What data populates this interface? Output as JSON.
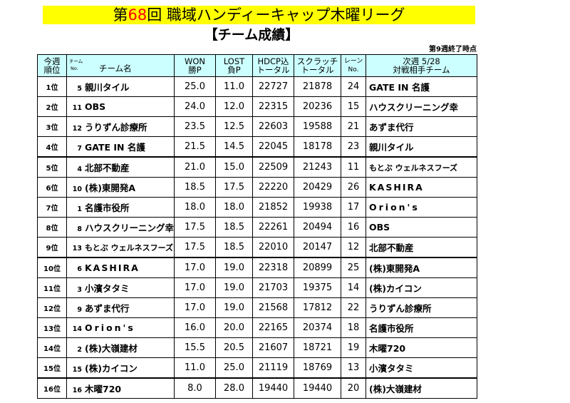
{
  "title": {
    "pre": "第",
    "num": "68",
    "post": "回  職域ハンディーキャップ木曜リーグ"
  },
  "subtitle": "【チーム成績】",
  "note": "第9週終了時点",
  "headers": {
    "rank_1": "今週",
    "rank_2": "順位",
    "team_small_1": "チーム",
    "team_small_2": "No.",
    "team_name": "チーム名",
    "won_1": "WON",
    "won_2": "勝P",
    "lost_1": "LOST",
    "lost_2": "負P",
    "hdcp_1": "HDCP込",
    "hdcp_2": "トータル",
    "scratch_1": "スクラッチ",
    "scratch_2": "トータル",
    "lane_1": "レーン",
    "lane_2": "No.",
    "next_1": "次週 5/28",
    "next_2": "対戦相手チーム"
  },
  "rows": [
    {
      "rank": "1位",
      "no": "5",
      "team": "親川タイル",
      "won": "25.0",
      "lost": "11.0",
      "hdcp": "22727",
      "scratch": "21878",
      "lane": "24",
      "opponent": "GATE IN 名護"
    },
    {
      "rank": "2位",
      "no": "11",
      "team": "OBS",
      "won": "24.0",
      "lost": "12.0",
      "hdcp": "22315",
      "scratch": "20236",
      "lane": "15",
      "opponent": "ハウスクリーニング幸"
    },
    {
      "rank": "3位",
      "no": "12",
      "team": "うりずん診療所",
      "won": "23.5",
      "lost": "12.5",
      "hdcp": "22603",
      "scratch": "19588",
      "lane": "21",
      "opponent": "あずま代行"
    },
    {
      "rank": "4位",
      "no": "7",
      "team": "GATE IN 名護",
      "won": "21.5",
      "lost": "14.5",
      "hdcp": "22045",
      "scratch": "18178",
      "lane": "23",
      "opponent": "親川タイル"
    },
    {
      "rank": "5位",
      "no": "4",
      "team": "北部不動産",
      "won": "21.0",
      "lost": "15.0",
      "hdcp": "22509",
      "scratch": "21243",
      "lane": "11",
      "opponent": "もとぶ ウェルネスフーズ"
    },
    {
      "rank": "6位",
      "no": "10",
      "team": "(株)東開発A",
      "won": "18.5",
      "lost": "17.5",
      "hdcp": "22220",
      "scratch": "20429",
      "lane": "26",
      "opponent": "KASHIRA"
    },
    {
      "rank": "7位",
      "no": "1",
      "team": "名護市役所",
      "won": "18.0",
      "lost": "18.0",
      "hdcp": "21852",
      "scratch": "19938",
      "lane": "17",
      "opponent": "Orion's"
    },
    {
      "rank": "8位",
      "no": "8",
      "team": "ハウスクリーニング幸",
      "won": "17.5",
      "lost": "18.5",
      "hdcp": "22261",
      "scratch": "20494",
      "lane": "16",
      "opponent": "OBS"
    },
    {
      "rank": "9位",
      "no": "13",
      "team": "もとぶ ウェルネスフーズ",
      "won": "17.5",
      "lost": "18.5",
      "hdcp": "22010",
      "scratch": "20147",
      "lane": "12",
      "opponent": "北部不動産"
    },
    {
      "rank": "10位",
      "no": "6",
      "team": "KASHIRA",
      "won": "17.0",
      "lost": "19.0",
      "hdcp": "22318",
      "scratch": "20899",
      "lane": "25",
      "opponent": "(株)東開発A"
    },
    {
      "rank": "11位",
      "no": "3",
      "team": "小濱タタミ",
      "won": "17.0",
      "lost": "19.0",
      "hdcp": "21703",
      "scratch": "19375",
      "lane": "14",
      "opponent": "(株)カイコン"
    },
    {
      "rank": "12位",
      "no": "9",
      "team": "あずま代行",
      "won": "17.0",
      "lost": "19.0",
      "hdcp": "21568",
      "scratch": "17812",
      "lane": "22",
      "opponent": "うりずん診療所"
    },
    {
      "rank": "13位",
      "no": "14",
      "team": "Orion's",
      "won": "16.0",
      "lost": "20.0",
      "hdcp": "22165",
      "scratch": "20374",
      "lane": "18",
      "opponent": "名護市役所"
    },
    {
      "rank": "14位",
      "no": "2",
      "team": "(株)大嶺建材",
      "won": "15.5",
      "lost": "20.5",
      "hdcp": "21607",
      "scratch": "18721",
      "lane": "19",
      "opponent": "木曜720"
    },
    {
      "rank": "15位",
      "no": "15",
      "team": "(株)カイコン",
      "won": "11.0",
      "lost": "25.0",
      "hdcp": "21119",
      "scratch": "18769",
      "lane": "13",
      "opponent": "小濱タタミ"
    },
    {
      "rank": "16位",
      "no": "16",
      "team": "木曜720",
      "won": "8.0",
      "lost": "28.0",
      "hdcp": "19440",
      "scratch": "19440",
      "lane": "20",
      "opponent": "(株)大嶺建材"
    }
  ]
}
